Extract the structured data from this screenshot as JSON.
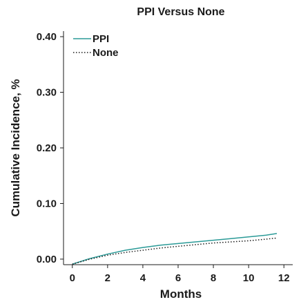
{
  "chart_data": {
    "type": "line",
    "title": "PPI Versus None",
    "xlabel": "Months",
    "ylabel": "Cumulative Incidence, %",
    "xlim": [
      -0.5,
      12.5
    ],
    "ylim": [
      -0.01,
      0.41
    ],
    "x_ticks": [
      0,
      2,
      4,
      6,
      8,
      10,
      12
    ],
    "y_ticks": [
      0.0,
      0.1,
      0.2,
      0.3,
      0.4
    ],
    "x_tick_labels": [
      "0",
      "2",
      "4",
      "6",
      "8",
      "10",
      "12"
    ],
    "y_tick_labels": [
      "0.00",
      "0.10",
      "0.20",
      "0.30",
      "0.40"
    ],
    "grid": false,
    "legend_position": "top-left",
    "series": [
      {
        "name": "PPI",
        "color": "#2a9a97",
        "dash": "solid",
        "x": [
          0,
          1,
          2,
          3,
          4,
          5,
          6,
          7,
          8,
          9,
          10,
          11,
          11.6
        ],
        "y": [
          -0.009,
          0.001,
          0.009,
          0.016,
          0.021,
          0.025,
          0.028,
          0.031,
          0.034,
          0.037,
          0.04,
          0.043,
          0.046
        ]
      },
      {
        "name": "None",
        "color": "#1a1a1a",
        "dash": "dotted",
        "x": [
          0,
          1,
          2,
          3,
          4,
          5,
          6,
          7,
          8,
          9,
          10,
          11,
          11.6
        ],
        "y": [
          -0.009,
          0.0,
          0.007,
          0.012,
          0.016,
          0.02,
          0.023,
          0.026,
          0.029,
          0.031,
          0.033,
          0.036,
          0.038
        ]
      }
    ]
  }
}
